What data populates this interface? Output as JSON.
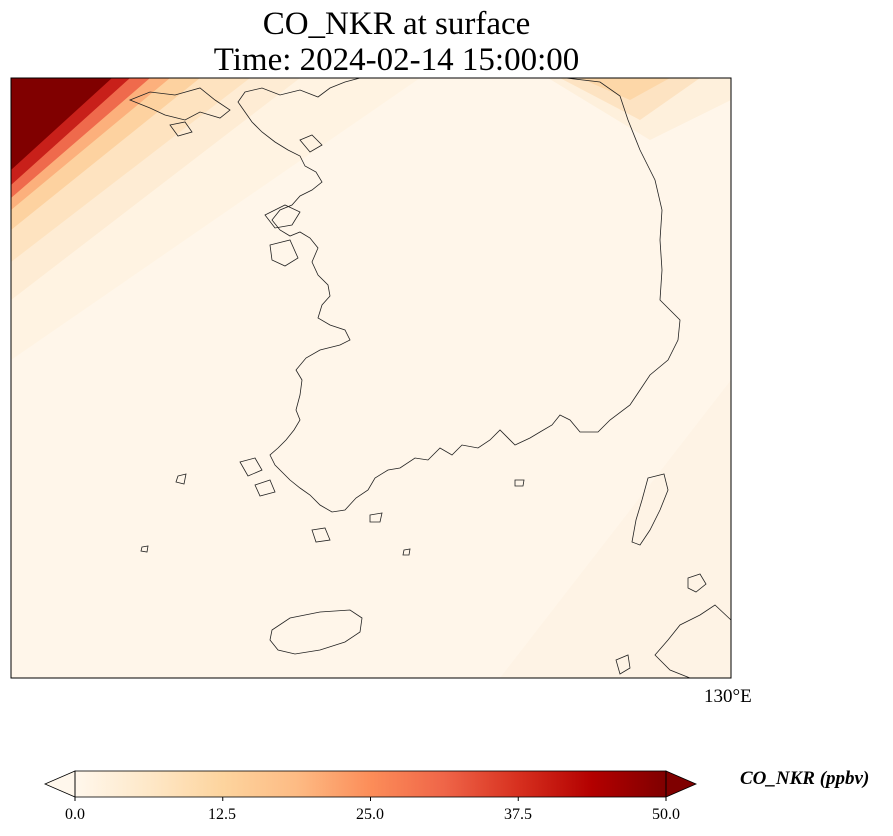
{
  "title": {
    "line1": "CO_NKR at surface",
    "line2": "Time: 2024-02-14 15:00:00"
  },
  "map": {
    "longitude_label": "130°E",
    "variable": "CO_NKR",
    "units": "ppbv"
  },
  "colorbar": {
    "label": "CO_NKR (ppbv)",
    "min": 0.0,
    "max": 50.0,
    "extend": "both",
    "colormap": "OrRd",
    "colors": [
      "#fff7ec",
      "#fee8c8",
      "#fdd49e",
      "#fdbb84",
      "#fc8d59",
      "#ef6548",
      "#d7301f",
      "#b30000",
      "#7f0000"
    ],
    "ticks": [
      "0.0",
      "12.5",
      "25.0",
      "37.5",
      "50.0"
    ]
  },
  "frame_color": "#000000"
}
